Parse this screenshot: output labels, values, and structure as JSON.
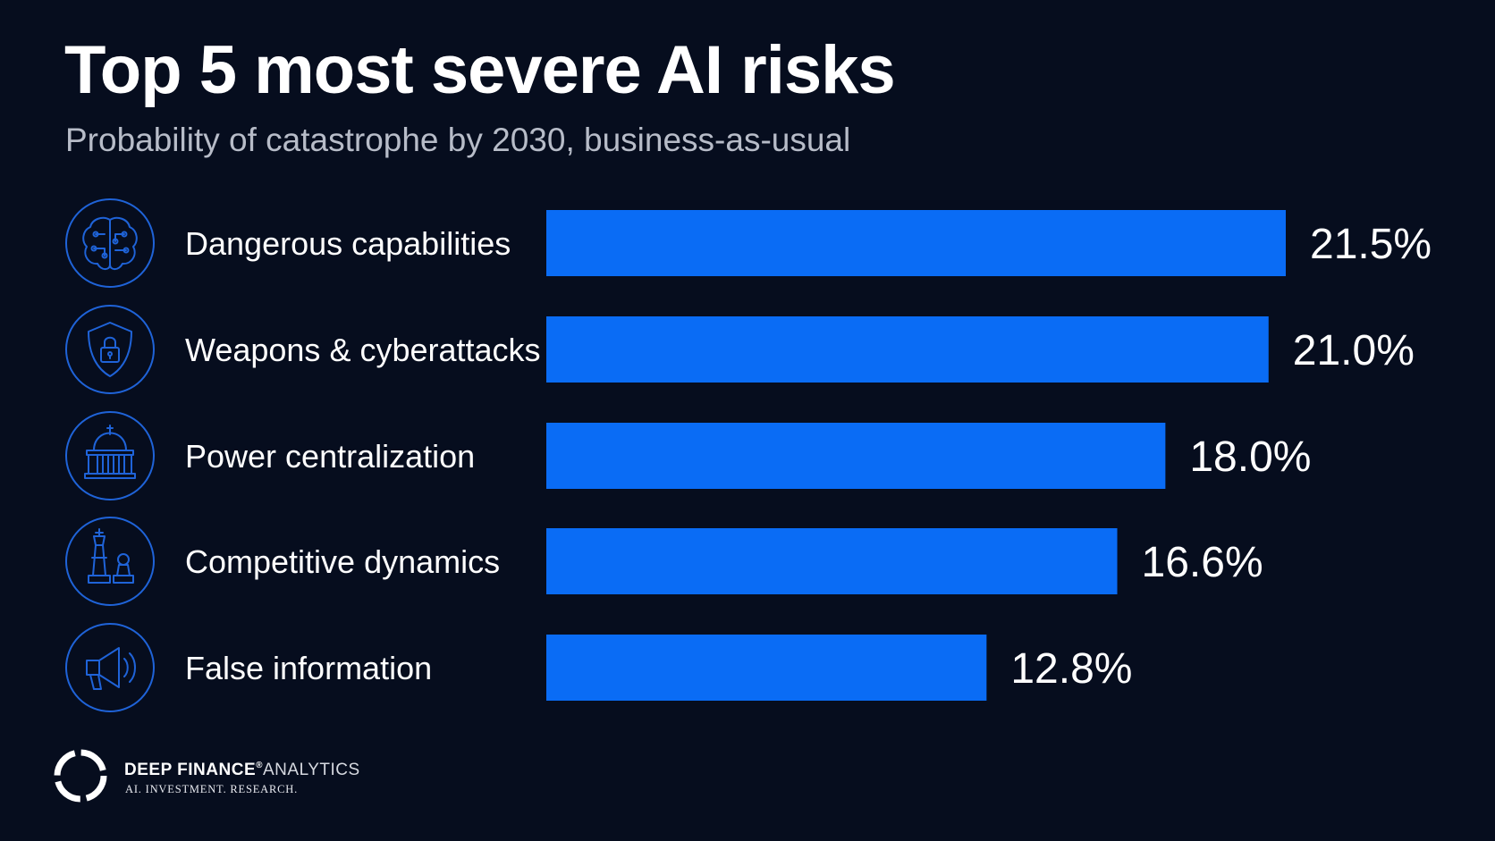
{
  "chart_data": {
    "type": "bar",
    "orientation": "horizontal",
    "title": "Top 5 most severe AI risks",
    "subtitle": "Probability of catastrophe by 2030, business-as-usual",
    "categories": [
      "Dangerous capabilities",
      "Weapons & cyberattacks",
      "Power centralization",
      "Competitive dynamics",
      "False information"
    ],
    "values": [
      21.5,
      21.0,
      18.0,
      16.6,
      12.8
    ],
    "value_labels": [
      "21.5%",
      "21.0%",
      "18.0%",
      "16.6%",
      "12.8%"
    ],
    "icons": [
      "brain-circuit-icon",
      "shield-lock-icon",
      "capitol-building-icon",
      "chess-pieces-icon",
      "megaphone-icon"
    ],
    "xlim": [
      0,
      21.5
    ],
    "grid": false,
    "legend": "none",
    "bar_color": "#0a6cf5",
    "background_color": "#060d1e"
  },
  "brand": {
    "name_bold": "DEEP FINANCE",
    "registered_mark": "®",
    "name_light": "ANALYTICS",
    "tagline": "AI. INVESTMENT. RESEARCH."
  }
}
